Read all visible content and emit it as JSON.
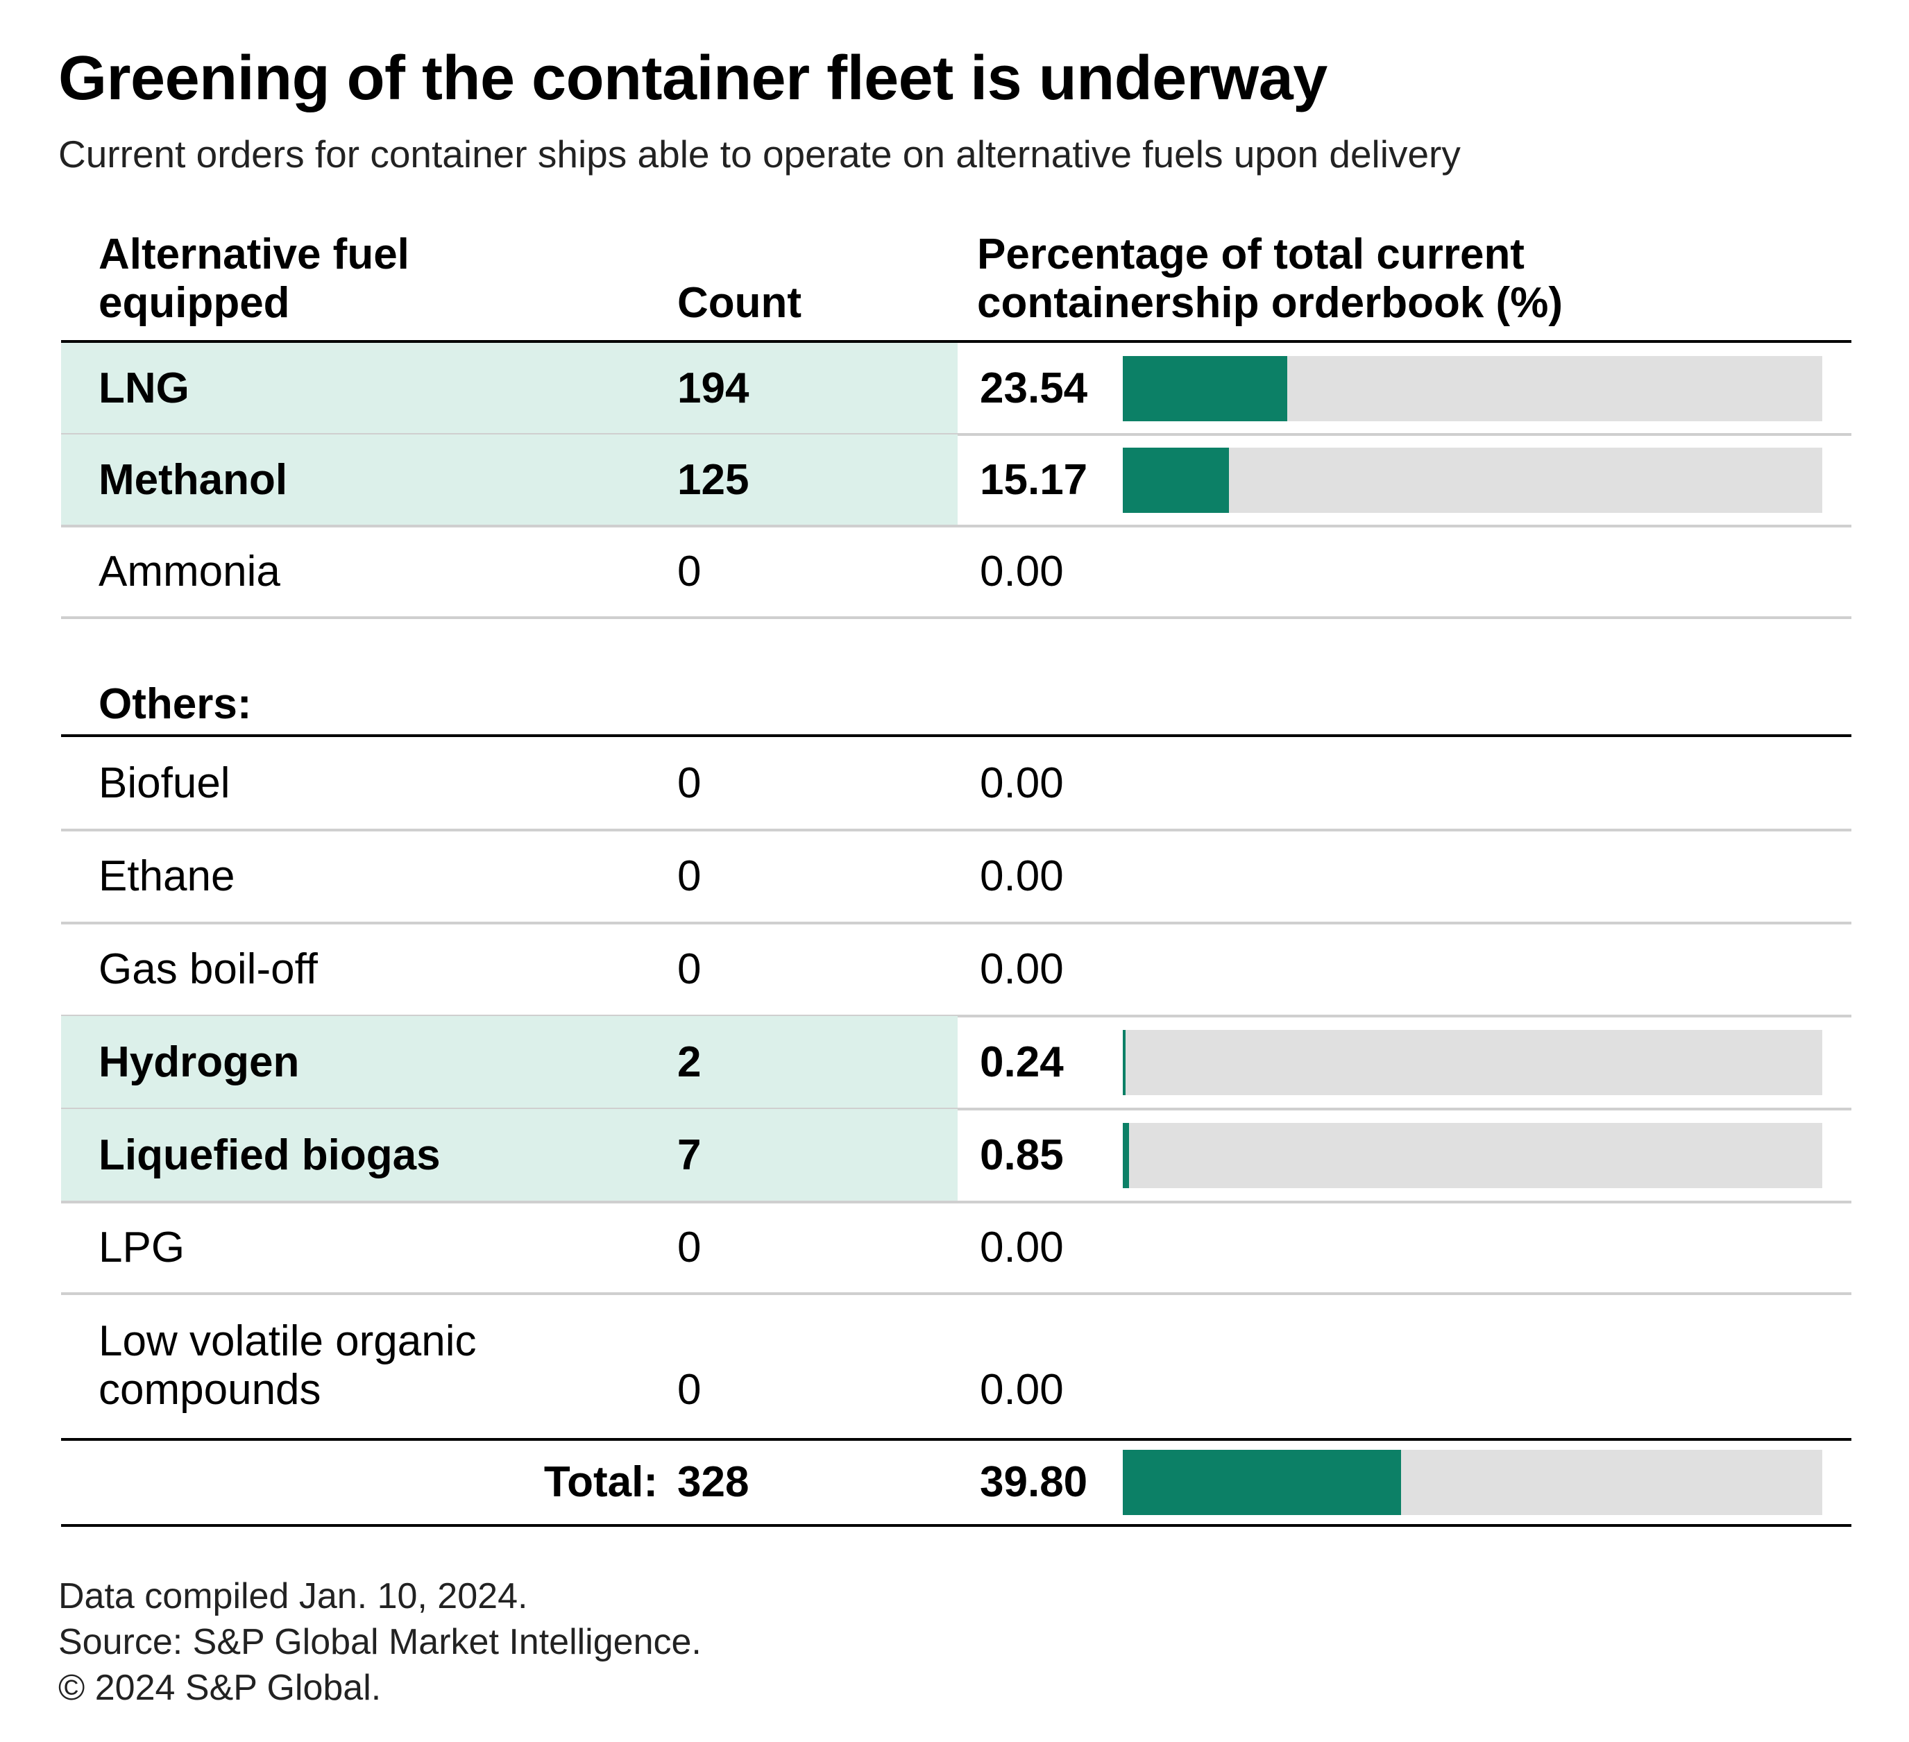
{
  "chart_data": {
    "type": "table",
    "title": "Greening of the container fleet is underway",
    "subtitle": "Current orders for container ships able to operate on alternative fuels upon delivery",
    "headers": {
      "fuel_line1": "Alternative fuel",
      "fuel_line2": "equipped",
      "count": "Count",
      "pct_line1": "Percentage of total current",
      "pct_line2": "containership orderbook (%)"
    },
    "bar_scale_max": 100,
    "main_rows": [
      {
        "fuel": "LNG",
        "count": "194",
        "pct": "23.54",
        "pct_value": 23.54,
        "highlight": true
      },
      {
        "fuel": "Methanol",
        "count": "125",
        "pct": "15.17",
        "pct_value": 15.17,
        "highlight": true
      },
      {
        "fuel": "Ammonia",
        "count": "0",
        "pct": "0.00",
        "pct_value": 0,
        "highlight": false
      }
    ],
    "others_label": "Others:",
    "other_rows": [
      {
        "fuel": "Biofuel",
        "count": "0",
        "pct": "0.00",
        "pct_value": 0,
        "highlight": false
      },
      {
        "fuel": "Ethane",
        "count": "0",
        "pct": "0.00",
        "pct_value": 0,
        "highlight": false
      },
      {
        "fuel": "Gas boil-off",
        "count": "0",
        "pct": "0.00",
        "pct_value": 0,
        "highlight": false
      },
      {
        "fuel": "Hydrogen",
        "count": "2",
        "pct": "0.24",
        "pct_value": 0.24,
        "highlight": true
      },
      {
        "fuel": "Liquefied biogas",
        "count": "7",
        "pct": "0.85",
        "pct_value": 0.85,
        "highlight": true
      },
      {
        "fuel": "LPG",
        "count": "0",
        "pct": "0.00",
        "pct_value": 0,
        "highlight": false
      },
      {
        "fuel_line1": "Low volatile organic",
        "fuel_line2": "compounds",
        "count": "0",
        "pct": "0.00",
        "pct_value": 0,
        "highlight": false
      }
    ],
    "total": {
      "label": "Total:",
      "count": "328",
      "pct": "39.80",
      "pct_value": 39.8
    }
  },
  "footer": {
    "line1": "Data compiled Jan. 10, 2024.",
    "line2": "Source: S&P Global Market Intelligence.",
    "line3": "© 2024 S&P Global."
  }
}
